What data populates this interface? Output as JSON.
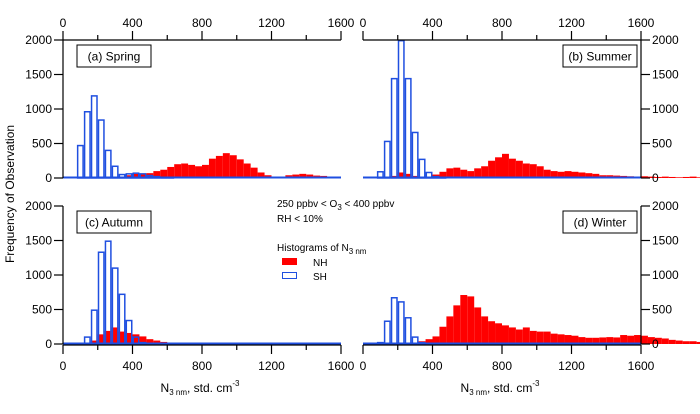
{
  "chart_data": {
    "type": "bar",
    "subtype": "histogram",
    "ylabel": "Frequency of Observation",
    "xlabel": "N3 nm, std. cm-3",
    "xlabel_parts": {
      "main": "N",
      "sub": "3 nm",
      "rest": ", std. cm",
      "sup": "-3"
    },
    "xlim": [
      0,
      1600
    ],
    "ylim": [
      0,
      2000
    ],
    "xticks": [
      0,
      400,
      800,
      1200,
      1600
    ],
    "yticks": [
      0,
      500,
      1000,
      1500,
      2000
    ],
    "bin_width": 40,
    "legend": {
      "title_main": "Histograms of N",
      "title_sub": "3 nm",
      "entries": [
        {
          "name": "NH",
          "color": "#ff0000",
          "style": "filled"
        },
        {
          "name": "SH",
          "color": "#1f4fe0",
          "style": "outline"
        }
      ],
      "placement": "center"
    },
    "annotations": {
      "line1_a": "250 ppbv < O",
      "line1_sub": "3",
      "line1_b": " < 400 ppbv",
      "line2": "RH < 10%"
    },
    "panels": [
      {
        "label": "(a) Spring",
        "position": "top-left",
        "series": [
          {
            "name": "NH",
            "bin_start": 280,
            "values": [
              10,
              20,
              40,
              60,
              55,
              70,
              100,
              120,
              160,
              200,
              210,
              190,
              170,
              190,
              280,
              320,
              360,
              330,
              270,
              210,
              150,
              80,
              40,
              20,
              15,
              40,
              50,
              60,
              50,
              35,
              30,
              10,
              5
            ]
          },
          {
            "name": "SH",
            "bin_start": 80,
            "values": [
              470,
              960,
              1190,
              840,
              400,
              170,
              50,
              60,
              70,
              60,
              35,
              20,
              10,
              5
            ]
          }
        ]
      },
      {
        "label": "(b) Summer",
        "position": "top-right",
        "series": [
          {
            "name": "NH",
            "bin_start": 120,
            "values": [
              10,
              30,
              80,
              60,
              30,
              10,
              20,
              50,
              90,
              140,
              150,
              120,
              100,
              140,
              170,
              250,
              300,
              350,
              280,
              250,
              210,
              200,
              170,
              120,
              100,
              90,
              100,
              90,
              80,
              70,
              60,
              40,
              40,
              35,
              30,
              25,
              20,
              25,
              20,
              15,
              20,
              15,
              10,
              15,
              20,
              10,
              10,
              5,
              5,
              5
            ]
          },
          {
            "name": "SH",
            "bin_start": 80,
            "values": [
              90,
              530,
              1440,
              1990,
              1440,
              660,
              270,
              80,
              20,
              5
            ]
          }
        ]
      },
      {
        "label": "(c) Autumn",
        "position": "bottom-left",
        "series": [
          {
            "name": "NH",
            "bin_start": 160,
            "values": [
              50,
              140,
              190,
              240,
              180,
              160,
              140,
              110,
              70,
              50,
              30,
              20,
              15,
              10,
              5
            ]
          },
          {
            "name": "SH",
            "bin_start": 120,
            "values": [
              100,
              490,
              1330,
              1490,
              1100,
              720,
              340,
              100,
              20,
              5
            ]
          }
        ]
      },
      {
        "label": "(d) Winter",
        "position": "bottom-right",
        "series": [
          {
            "name": "NH",
            "bin_start": 280,
            "values": [
              20,
              40,
              70,
              110,
              250,
              400,
              560,
              710,
              690,
              530,
              400,
              330,
              300,
              270,
              240,
              210,
              240,
              190,
              180,
              180,
              150,
              140,
              130,
              120,
              100,
              90,
              90,
              95,
              100,
              95,
              130,
              120,
              130,
              120,
              100,
              90,
              80,
              60,
              50,
              40,
              40,
              30,
              35,
              20,
              20,
              15,
              10,
              10
            ]
          },
          {
            "name": "SH",
            "bin_start": 80,
            "values": [
              20,
              330,
              670,
              610,
              380,
              100,
              20,
              5
            ]
          }
        ]
      }
    ]
  }
}
